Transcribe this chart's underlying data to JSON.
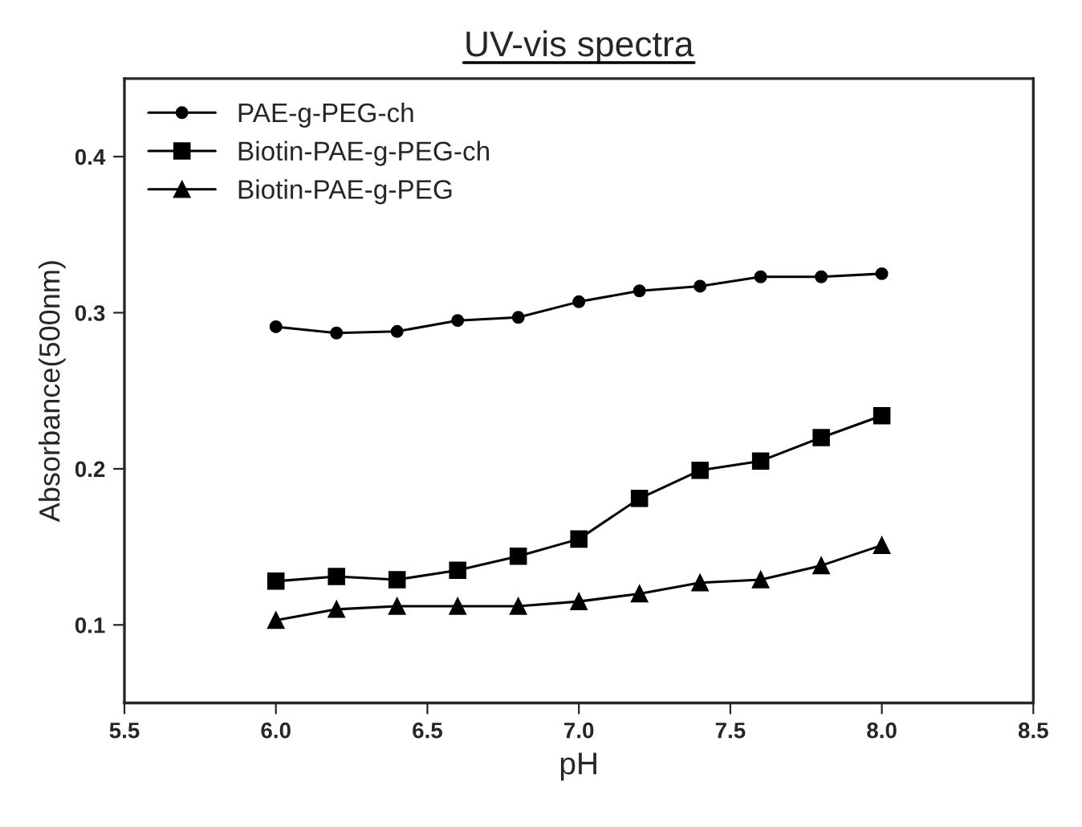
{
  "chart_data": {
    "type": "line",
    "title": "UV-vis spectra",
    "xlabel": "pH",
    "ylabel": "Absorbance(500nm)",
    "x": [
      6.0,
      6.2,
      6.4,
      6.6,
      6.8,
      7.0,
      7.2,
      7.4,
      7.6,
      7.8,
      8.0
    ],
    "series": [
      {
        "name": "PAE-g-PEG-ch",
        "color": "#000000",
        "marker": "circle",
        "values": [
          0.291,
          0.287,
          0.288,
          0.295,
          0.297,
          0.307,
          0.314,
          0.317,
          0.323,
          0.323,
          0.325
        ]
      },
      {
        "name": "Biotin-PAE-g-PEG-ch",
        "color": "#000000",
        "marker": "square",
        "values": [
          0.128,
          0.131,
          0.129,
          0.135,
          0.144,
          0.155,
          0.181,
          0.199,
          0.205,
          0.22,
          0.234
        ]
      },
      {
        "name": "Biotin-PAE-g-PEG",
        "color": "#000000",
        "marker": "triangle",
        "values": [
          0.103,
          0.11,
          0.112,
          0.112,
          0.112,
          0.115,
          0.12,
          0.127,
          0.129,
          0.138,
          0.151
        ]
      }
    ],
    "xlim": [
      5.5,
      8.5
    ],
    "xticks": [
      {
        "value": 5.5,
        "label": "5.5"
      },
      {
        "value": 6.0,
        "label": "6.0"
      },
      {
        "value": 6.5,
        "label": "6.5"
      },
      {
        "value": 7.0,
        "label": "7.0"
      },
      {
        "value": 7.5,
        "label": "7.5"
      },
      {
        "value": 8.0,
        "label": "8.0"
      },
      {
        "value": 8.5,
        "label": "8.5"
      }
    ],
    "ylim": [
      0.05,
      0.45
    ],
    "yticks": [
      0.1,
      0.2,
      0.3,
      0.4
    ],
    "grid": false,
    "legend": "top left",
    "line_style": "solid"
  }
}
